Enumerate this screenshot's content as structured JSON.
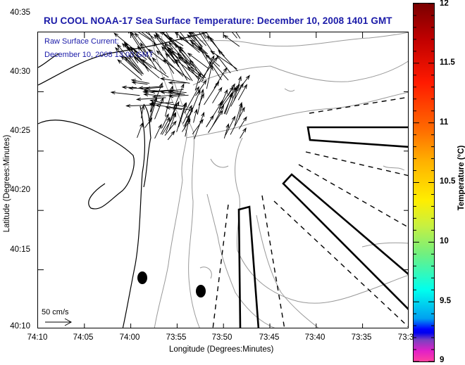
{
  "title": "RU COOL  NOAA-17  Sea Surface Temperature:  December 10, 2008 1401 GMT",
  "overlay": {
    "line1": "Raw Surface Current:",
    "line2": "December 10, 2008 13:00 GMT"
  },
  "scale_vector": {
    "label": "50 cm/s"
  },
  "axes": {
    "xlabel": "Longitude (Degrees:Minutes)",
    "ylabel": "Latitude (Degrees:Minutes)",
    "xticks": [
      "74:10",
      "74:05",
      "74:00",
      "73:55",
      "73:50",
      "73:45",
      "73:40",
      "73:35",
      "73:3"
    ],
    "yticks": [
      "40:35",
      "40:30",
      "40:25",
      "40:20",
      "40:15",
      "40:10"
    ]
  },
  "colorbar": {
    "label": "Temperature (°C)",
    "ticks": [
      "12",
      "11.5",
      "11",
      "10.5",
      "10",
      "9.5",
      "9"
    ],
    "range": [
      9,
      12
    ]
  },
  "colors": {
    "title": "#1a1aa8",
    "coastline": "#000000",
    "bathymetry": "#999999"
  }
}
